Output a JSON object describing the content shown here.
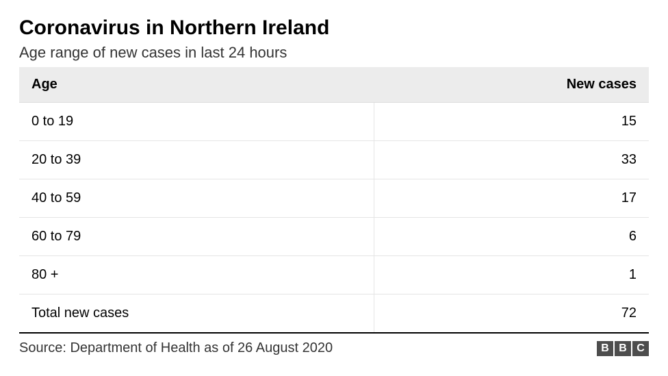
{
  "title": "Coronavirus in Northern Ireland",
  "subtitle": "Age range of new cases in last 24 hours",
  "table": {
    "type": "table",
    "columns": [
      "Age",
      "New cases"
    ],
    "column_align": [
      "left",
      "right"
    ],
    "rows": [
      [
        "0 to 19",
        "15"
      ],
      [
        "20 to 39",
        "33"
      ],
      [
        "40 to 59",
        "17"
      ],
      [
        "60 to 79",
        "6"
      ],
      [
        "80 +",
        "1"
      ],
      [
        "Total new cases",
        "72"
      ]
    ],
    "header_background": "#ececec",
    "border_color": "#e5e5e5",
    "bottom_border_color": "#000000",
    "header_fontsize": 20,
    "cell_fontsize": 20,
    "text_color": "#000000"
  },
  "source": "Source: Department of Health as of 26 August 2020",
  "logo": {
    "letters": [
      "B",
      "B",
      "C"
    ],
    "box_color": "#4d4d4d",
    "text_color": "#ffffff"
  },
  "background_color": "#ffffff",
  "title_fontsize": 30,
  "subtitle_fontsize": 22,
  "source_fontsize": 20
}
